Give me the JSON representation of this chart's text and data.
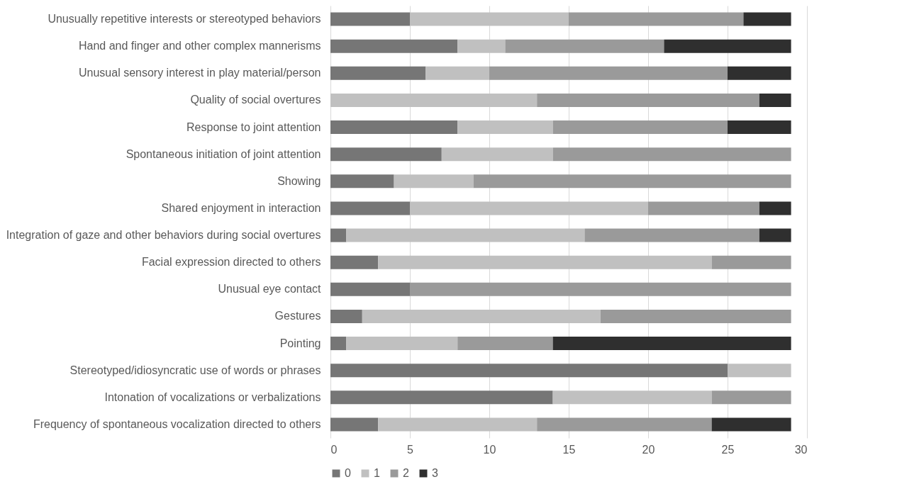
{
  "chart_data": {
    "type": "bar",
    "orientation": "horizontal",
    "stacked": true,
    "categories": [
      "Unusually repetitive interests or stereotyped behaviors",
      "Hand and finger and other complex mannerisms",
      "Unusual sensory interest in play material/person",
      "Quality of social overtures",
      "Response to joint attention",
      "Spontaneous initiation of joint attention",
      "Showing",
      "Shared enjoyment in interaction",
      "Integration of gaze and other behaviors during social overtures",
      "Facial expression directed to others",
      "Unusual eye contact",
      "Gestures",
      "Pointing",
      "Stereotyped/idiosyncratic use of words or phrases",
      "Intonation of vocalizations or verbalizations",
      "Frequency of spontaneous vocalization directed to others"
    ],
    "series": [
      {
        "name": "0",
        "color": "#767676",
        "values": [
          5,
          8,
          6,
          null,
          8,
          7,
          4,
          5,
          1,
          3,
          5,
          2,
          1,
          25,
          14,
          3
        ]
      },
      {
        "name": "1",
        "color": "#c0c0c0",
        "values": [
          10,
          3,
          4,
          13,
          6,
          7,
          5,
          15,
          15,
          21,
          null,
          15,
          7,
          4,
          10,
          10
        ]
      },
      {
        "name": "2",
        "color": "#9a9a9a",
        "values": [
          11,
          10,
          15,
          14,
          11,
          15,
          20,
          7,
          11,
          5,
          24,
          12,
          6,
          null,
          5,
          11
        ]
      },
      {
        "name": "3",
        "color": "#2f2f2f",
        "values": [
          3,
          8,
          4,
          2,
          4,
          null,
          null,
          2,
          2,
          null,
          null,
          null,
          15,
          null,
          null,
          5
        ]
      }
    ],
    "xlim": [
      0,
      30
    ],
    "xticks": [
      0,
      5,
      10,
      15,
      20,
      25,
      30
    ],
    "grid": "x",
    "legend": "bottom"
  }
}
